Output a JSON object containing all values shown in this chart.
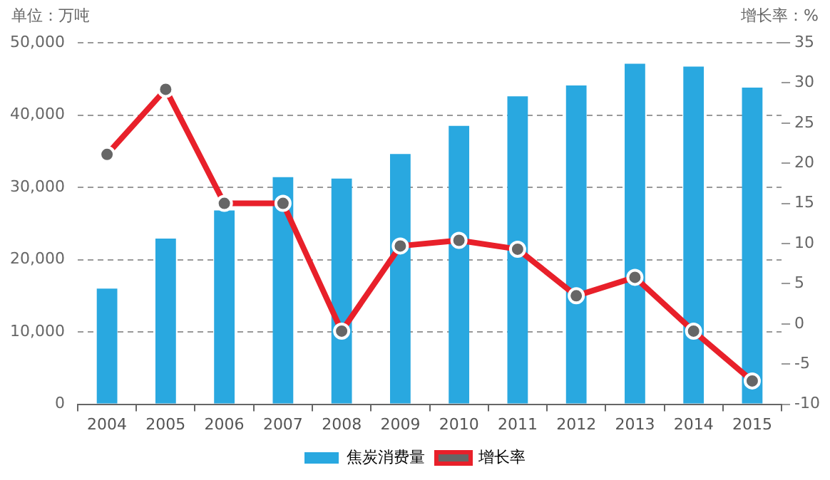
{
  "chart_data": {
    "type": "bar",
    "ylabel": "单位：万吨",
    "y2label": "增长率：%",
    "categories": [
      "2004",
      "2005",
      "2006",
      "2007",
      "2008",
      "2009",
      "2010",
      "2011",
      "2012",
      "2013",
      "2014",
      "2015"
    ],
    "series": [
      {
        "name": "焦炭消费量",
        "color": "#29a8e0",
        "values": [
          16000,
          22900,
          26800,
          31400,
          31200,
          34600,
          38500,
          42600,
          44100,
          47100,
          46700,
          43800
        ]
      },
      {
        "name": "增长率",
        "type": "line",
        "axis": "y2",
        "color": "#e8202a",
        "marker": "circle",
        "values": [
          21.1,
          29.2,
          15.0,
          15.0,
          -0.9,
          9.7,
          10.4,
          9.3,
          3.5,
          5.8,
          -0.9,
          -7.1
        ]
      }
    ],
    "ylim": [
      0,
      50000
    ],
    "yticks": [
      {
        "value": 0,
        "label": "0"
      },
      {
        "value": 10000,
        "label": "10,000"
      },
      {
        "value": 20000,
        "label": "20,000"
      },
      {
        "value": 30000,
        "label": "30,000"
      },
      {
        "value": 40000,
        "label": "40,000"
      },
      {
        "value": 50000,
        "label": "50,000"
      }
    ],
    "y2lim": [
      -10,
      35
    ],
    "y2ticks": [
      -10,
      -5,
      0,
      5,
      10,
      15,
      20,
      25,
      30,
      35
    ],
    "grid": "y",
    "legend": "bottom"
  }
}
